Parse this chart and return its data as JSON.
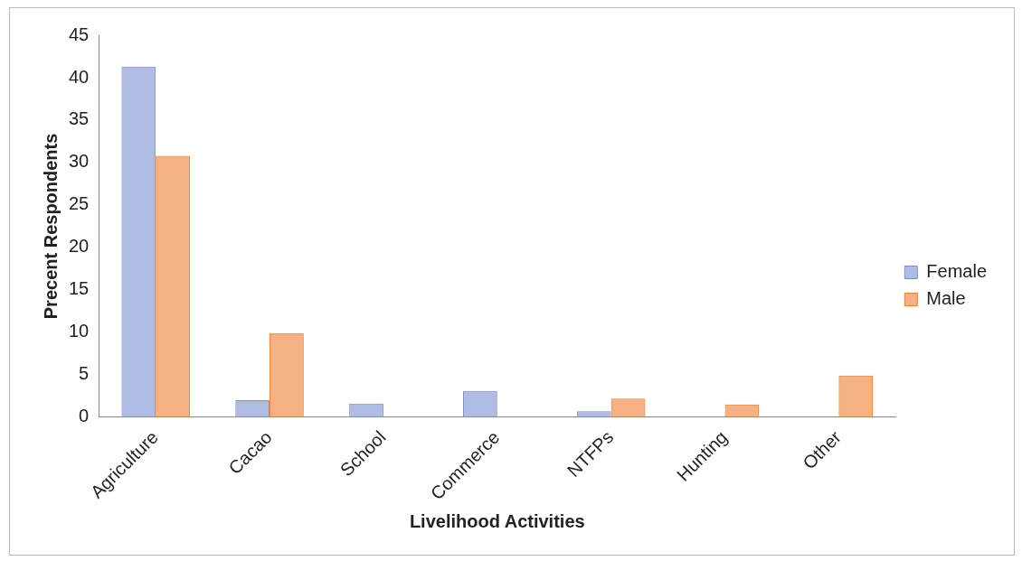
{
  "chart_data": {
    "type": "bar",
    "xlabel": "Livelihood Activities",
    "ylabel": "Precent Respondents",
    "categories": [
      "Agriculture",
      "Cacao",
      "School",
      "Commerce",
      "NTFPs",
      "Hunting",
      "Other"
    ],
    "series": [
      {
        "name": "Female",
        "color": "#7b8fd0",
        "values": [
          41.3,
          2.0,
          1.6,
          3.1,
          0.7,
          0,
          0
        ]
      },
      {
        "name": "Male",
        "color": "#ed7d31",
        "values": [
          30.8,
          9.9,
          0,
          0,
          2.2,
          1.5,
          4.9
        ]
      }
    ],
    "ylim": [
      0,
      45
    ],
    "yticks": [
      0,
      5,
      10,
      15,
      20,
      25,
      30,
      35,
      40,
      45
    ],
    "grid": false,
    "legend": "right"
  }
}
